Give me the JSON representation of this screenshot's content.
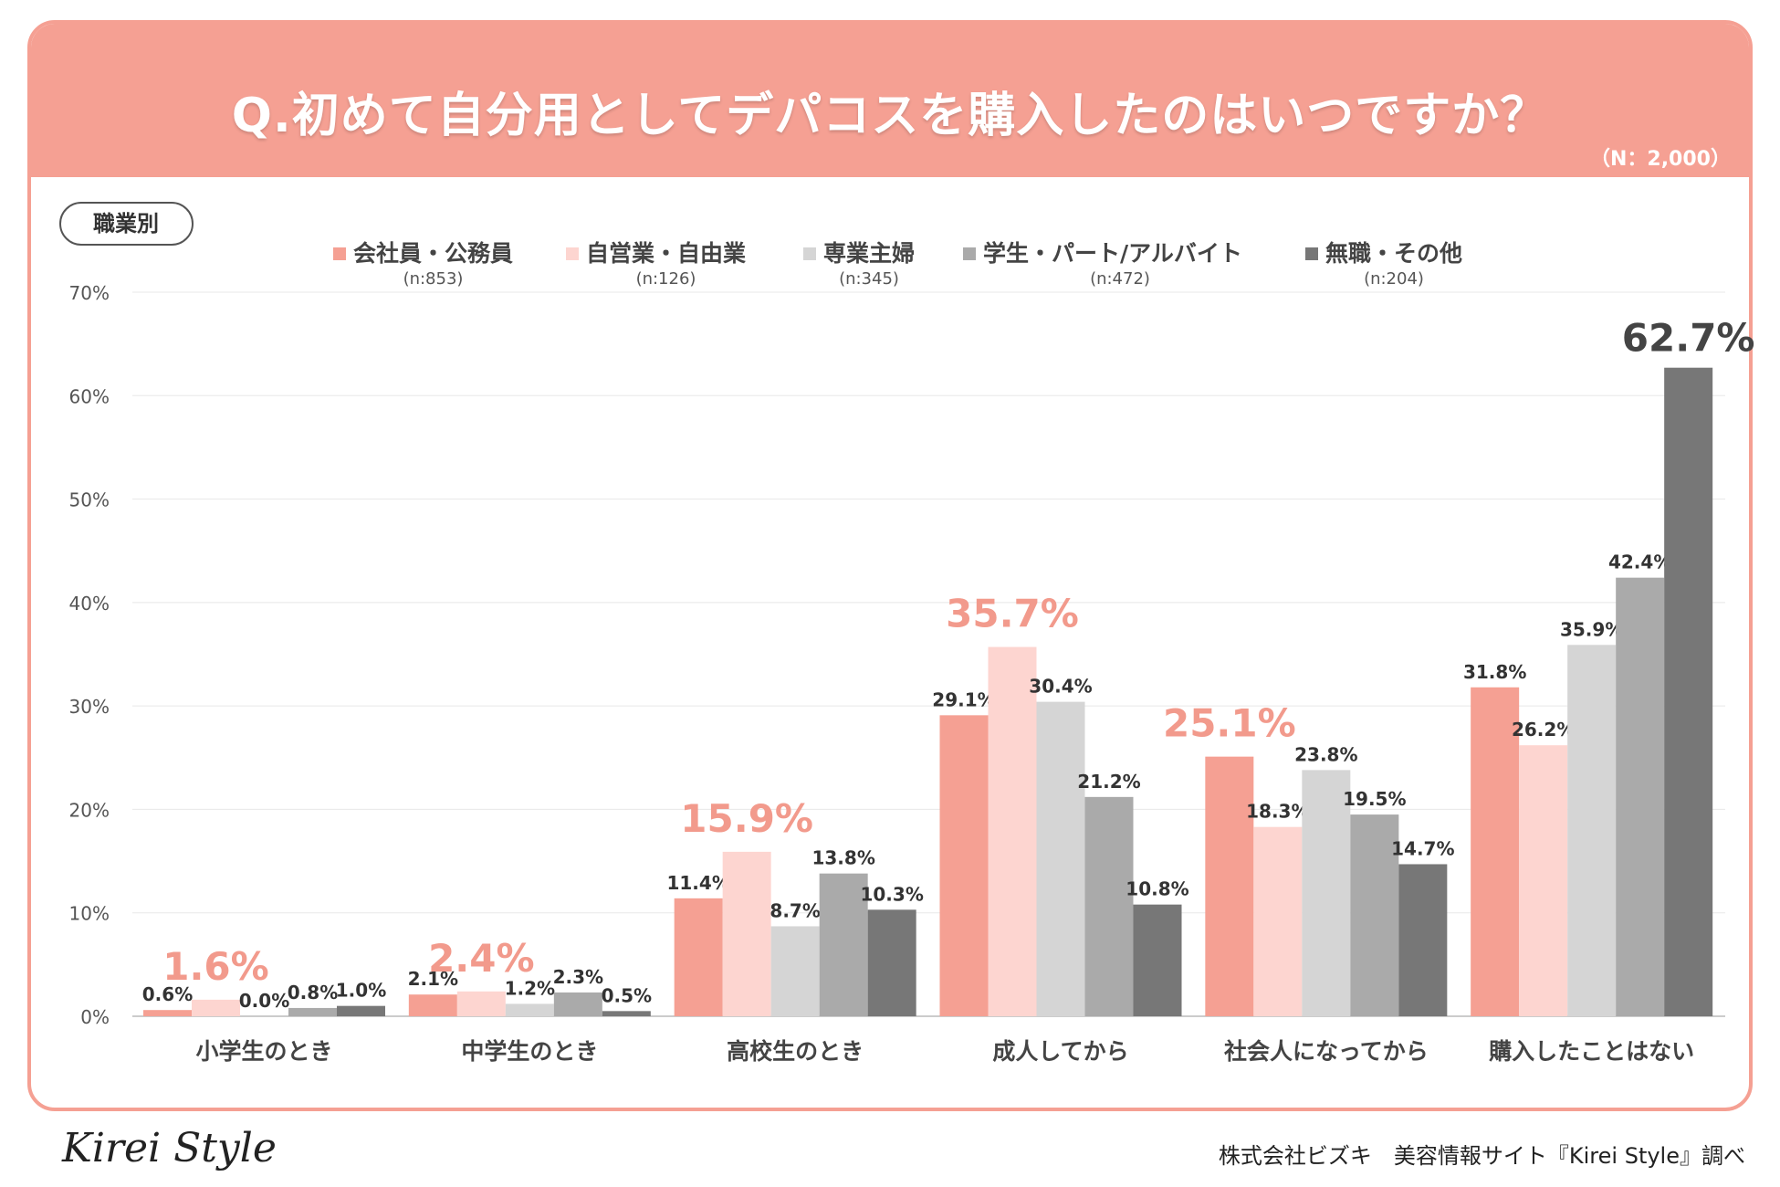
{
  "title": "Q.初めて自分用としてデパコスを購入したのはいつですか？",
  "n_total": "（N：2,000）",
  "tag_label": "職業別",
  "colors": {
    "accent": "#f5a093",
    "highlight_text": "#f29a8c",
    "series": [
      "#f5a093",
      "#fdd5d0",
      "#d5d5d5",
      "#aaaaaa",
      "#777777"
    ]
  },
  "footer": {
    "logo": "Kirei Style",
    "credit": "株式会社ビズキ　美容情報サイト『Kirei Style』調べ"
  },
  "chart_data": {
    "type": "bar",
    "title": "Q.初めて自分用としてデパコスを購入したのはいつですか？",
    "xlabel": "",
    "ylabel": "",
    "ylim": [
      0,
      70
    ],
    "yticks": [
      "0%",
      "10%",
      "20%",
      "30%",
      "40%",
      "50%",
      "60%",
      "70%"
    ],
    "grid": true,
    "legend_position": "top-center",
    "categories": [
      "小学生のとき",
      "中学生のとき",
      "高校生のとき",
      "成人してから",
      "社会人になってから",
      "購入したことはない"
    ],
    "series": [
      {
        "name": "会社員・公務員",
        "n": "(n:853)",
        "values": [
          0.6,
          2.1,
          11.4,
          29.1,
          25.1,
          31.8
        ]
      },
      {
        "name": "自営業・自由業",
        "n": "(n:126)",
        "values": [
          1.6,
          2.4,
          15.9,
          35.7,
          18.3,
          26.2
        ]
      },
      {
        "name": "専業主婦",
        "n": "(n:345)",
        "values": [
          0.0,
          1.2,
          8.7,
          30.4,
          23.8,
          35.9
        ]
      },
      {
        "name": "学生・パート/アルバイト",
        "n": "(n:472)",
        "values": [
          0.8,
          2.3,
          13.8,
          21.2,
          19.5,
          42.4
        ]
      },
      {
        "name": "無職・その他",
        "n": "(n:204)",
        "values": [
          1.0,
          0.5,
          10.3,
          10.8,
          14.7,
          62.7
        ]
      }
    ],
    "highlights": [
      {
        "category": 0,
        "series": 1,
        "label": "1.6%"
      },
      {
        "category": 1,
        "series": 1,
        "label": "2.4%"
      },
      {
        "category": 2,
        "series": 1,
        "label": "15.9%"
      },
      {
        "category": 3,
        "series": 1,
        "label": "35.7%"
      },
      {
        "category": 4,
        "series": 0,
        "label": "25.1%"
      },
      {
        "category": 5,
        "series": 4,
        "label": "62.7%"
      }
    ]
  }
}
